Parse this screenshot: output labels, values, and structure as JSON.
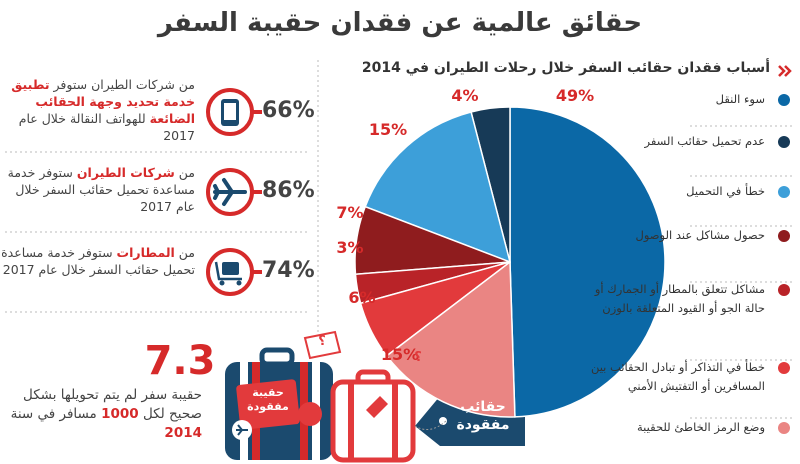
{
  "title": "حقائق عالمية عن فقدان حقيبة السفر",
  "chart_data": {
    "type": "pie",
    "title": "أسباب فقدان حقائب السفر خلال رحلات الطيران في 2014",
    "categories": [
      "سوء النقل",
      "عدم تحميل حقائب السفر",
      "خطأ في التحميل",
      "حصول مشاكل عند الوصول",
      "مشاكل تتعلق بالمطار أو الجمارك أو حالة الجو أو القيود المتعلقة بالوزن",
      "خطأ في التذاكر أو تبادل الحقائب بين المسافرين أو التفتيش الأمني",
      "وضع الرمز الخاطئ للحقيبة"
    ],
    "values": [
      49,
      4,
      15,
      7,
      3,
      6,
      15
    ],
    "value_labels": [
      "49%",
      "4%",
      "15%",
      "7%",
      "3%",
      "6%",
      "15%"
    ],
    "colors": [
      "#0b68a6",
      "#173a57",
      "#3d9fd9",
      "#8f1c1e",
      "#b92328",
      "#e23a3c",
      "#ea8583"
    ]
  },
  "stats": [
    {
      "percent": "66%",
      "segments": [
        {
          "text": "من شركات الطيران ستوفر ",
          "highlight": false
        },
        {
          "text": "تطبيق خدمة تحديد وجهة الحقائب الضائعة",
          "highlight": true
        },
        {
          "text": " للهواتف النقالة خلال عام 2017",
          "highlight": false
        }
      ]
    },
    {
      "percent": "86%",
      "segments": [
        {
          "text": "من ",
          "highlight": false
        },
        {
          "text": "شركات الطيران",
          "highlight": true
        },
        {
          "text": " ستوفر خدمة مساعدة تحميل حقائب السفر خلال عام 2017",
          "highlight": false
        }
      ]
    },
    {
      "percent": "74%",
      "segments": [
        {
          "text": "من ",
          "highlight": false
        },
        {
          "text": "المطارات",
          "highlight": true
        },
        {
          "text": " ستوفر خدمة مساعدة تحميل حقائب السفر خلال عام 2017",
          "highlight": false
        }
      ]
    }
  ],
  "footnote": {
    "number": "7.3",
    "segments": [
      {
        "text": "حقيبة سفر لم يتم تحويلها بشكل صحيح لكل ",
        "highlight": false
      },
      {
        "text": "1000",
        "highlight": true
      },
      {
        "text": " مسافر في سنة ",
        "highlight": false
      },
      {
        "text": "2014",
        "highlight": true
      }
    ]
  },
  "tags": {
    "suitcase": "حقيبة مفقودة",
    "badge": "حقائب مفقودة",
    "question": "؟"
  }
}
